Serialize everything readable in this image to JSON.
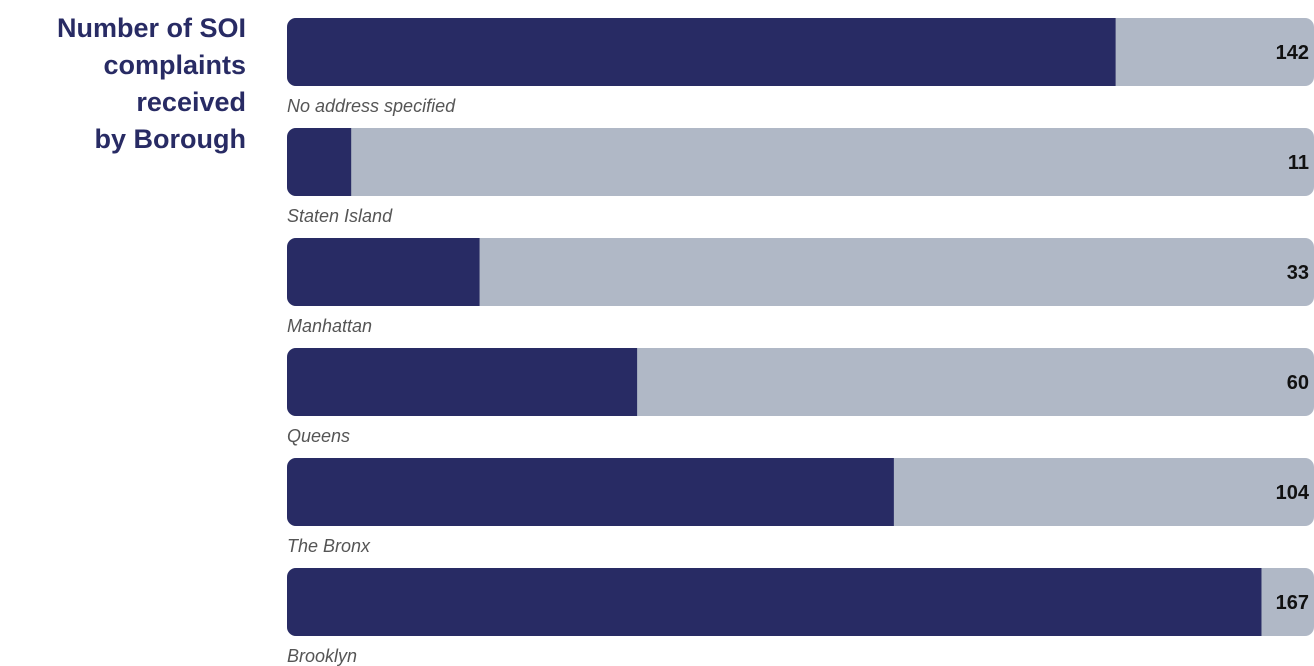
{
  "title_lines": [
    "Number of SOI",
    "complaints",
    "received",
    "by Borough"
  ],
  "colors": {
    "bar_fill": "#282b64",
    "bar_track": "#b0b8c6",
    "title": "#282b64",
    "label": "#555555",
    "value": "#111111"
  },
  "chart_data": {
    "type": "bar",
    "orientation": "horizontal",
    "title": "Number of SOI complaints received by Borough",
    "categories": [
      "No address specified",
      "Staten Island",
      "Manhattan",
      "Queens",
      "The Bronx",
      "Brooklyn"
    ],
    "values": [
      142,
      11,
      33,
      60,
      104,
      167
    ],
    "xlim": [
      0,
      176
    ],
    "grid": false,
    "legend": "none",
    "xlabel": "",
    "ylabel": ""
  }
}
